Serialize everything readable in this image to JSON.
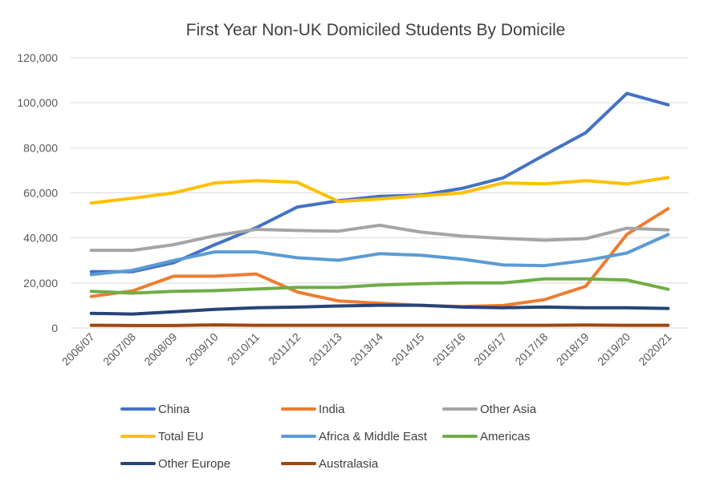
{
  "chart_data": {
    "type": "line",
    "title": "First Year Non-UK Domiciled Students By Domicile",
    "xlabel": "",
    "ylabel": "",
    "ylim": [
      0,
      120000
    ],
    "yticks": [
      "0",
      "20,000",
      "40,000",
      "60,000",
      "80,000",
      "100,000",
      "120,000"
    ],
    "grid": true,
    "legend_position": "bottom",
    "categories": [
      "2006/07",
      "2007/08",
      "2008/09",
      "2009/10",
      "2010/11",
      "2011/12",
      "2012/13",
      "2013/14",
      "2014/15",
      "2015/16",
      "2016/17",
      "2017/18",
      "2018/19",
      "2019/20",
      "2020/21"
    ],
    "series": [
      {
        "name": "China",
        "color": "#4472c4",
        "values": [
          25000,
          25000,
          29000,
          37000,
          44500,
          53700,
          56500,
          58500,
          59000,
          62000,
          66700,
          76800,
          86700,
          104200,
          99100
        ]
      },
      {
        "name": "India",
        "color": "#ed7d31",
        "values": [
          14000,
          16500,
          23000,
          23000,
          24000,
          16000,
          12000,
          11000,
          10000,
          9500,
          10000,
          12600,
          18500,
          41600,
          53000
        ]
      },
      {
        "name": "Other Asia",
        "color": "#a5a5a5",
        "values": [
          34500,
          34500,
          37000,
          41000,
          43800,
          43300,
          43000,
          45600,
          42600,
          40800,
          39800,
          39000,
          39700,
          44300,
          43600
        ]
      },
      {
        "name": "Total EU",
        "color": "#ffc000",
        "values": [
          55500,
          57600,
          60000,
          64400,
          65400,
          64700,
          56200,
          57300,
          58700,
          60000,
          64400,
          64000,
          65400,
          64000,
          66800
        ]
      },
      {
        "name": "Africa & Middle East",
        "color": "#5b9bd5",
        "values": [
          23700,
          25600,
          30000,
          33800,
          33800,
          31200,
          30100,
          33000,
          32300,
          30600,
          28000,
          27700,
          30000,
          33300,
          41500
        ]
      },
      {
        "name": "Americas",
        "color": "#70ad47",
        "values": [
          16300,
          15500,
          16300,
          16600,
          17300,
          18000,
          18000,
          19100,
          19700,
          20000,
          20000,
          21800,
          21800,
          21300,
          17200
        ]
      },
      {
        "name": "Other Europe",
        "color": "#264478",
        "values": [
          6500,
          6200,
          7200,
          8300,
          9000,
          9300,
          9800,
          10100,
          10100,
          9300,
          9000,
          9300,
          9000,
          9000,
          8700
        ]
      },
      {
        "name": "Australasia",
        "color": "#9e480e",
        "values": [
          1200,
          1100,
          1100,
          1400,
          1200,
          1200,
          1200,
          1200,
          1200,
          1200,
          1200,
          1200,
          1300,
          1200,
          1200
        ]
      }
    ]
  }
}
